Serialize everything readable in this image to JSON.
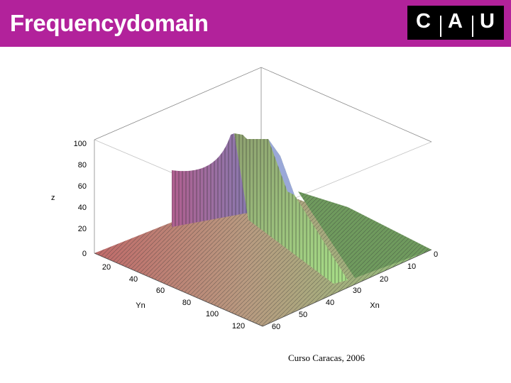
{
  "header": {
    "title": "Frequency domain",
    "logo": [
      "C",
      "A",
      "U"
    ]
  },
  "plot": {
    "z_label": "z",
    "z_ticks": [
      "100",
      "80",
      "60",
      "40",
      "20",
      "0"
    ],
    "y_label": "Yn",
    "y_ticks": [
      "20",
      "40",
      "60",
      "80",
      "100",
      "120"
    ],
    "x_label": "Xn",
    "x_ticks": [
      "60",
      "50",
      "40",
      "30",
      "20",
      "10",
      "0"
    ]
  },
  "footer": "Curso Caracas, 2006"
}
